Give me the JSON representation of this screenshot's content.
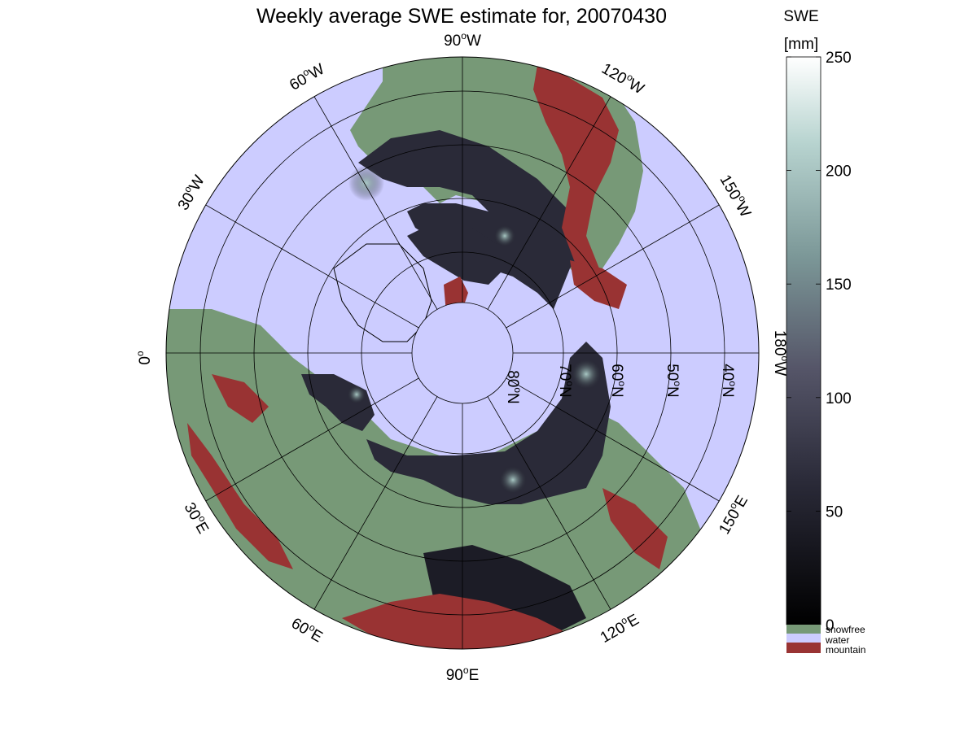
{
  "title": "Weekly average SWE estimate for, 20070430",
  "colorbar": {
    "label_line1": "SWE",
    "label_line2": "[mm]",
    "min": 0,
    "max": 250,
    "ticks": [
      "0",
      "50",
      "100",
      "150",
      "200",
      "250"
    ],
    "categories": [
      {
        "label": "snowfree",
        "color": "#779977"
      },
      {
        "label": "water",
        "color": "#ccccff"
      },
      {
        "label": "mountain",
        "color": "#993333"
      }
    ]
  },
  "map": {
    "projection": "north polar stereographic",
    "meridian_labels": {
      "m90w": "90",
      "m60w": "60",
      "m30w": "30",
      "m0": "0",
      "m120w": "120",
      "m150w": "150",
      "m180w": "180",
      "m30e": "30",
      "m60e": "60",
      "m90e": "90",
      "m120e": "120",
      "m150e": "150"
    },
    "meridian_suffix": {
      "w": "W",
      "e": "E",
      "deg": "o"
    },
    "parallel_labels": [
      "80",
      "70",
      "60",
      "50",
      "40"
    ],
    "parallel_suffix": "N",
    "colors": {
      "water": "#ccccff",
      "snowfree": "#779977",
      "mountain": "#993333",
      "snow_low": "#101018",
      "snow_mid": "#4a4a60",
      "snow_high": "#9fc0bc"
    }
  }
}
